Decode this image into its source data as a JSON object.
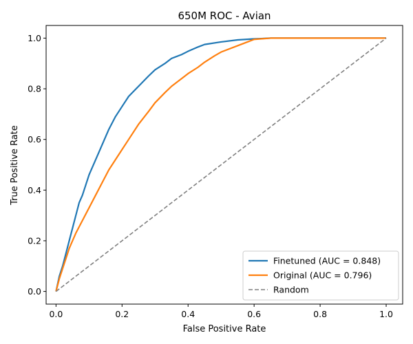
{
  "chart_data": {
    "type": "line",
    "title": "650M ROC - Avian",
    "xlabel": "False Positive Rate",
    "ylabel": "True Positive Rate",
    "xlim": [
      -0.03,
      1.05
    ],
    "ylim": [
      -0.05,
      1.05
    ],
    "xticks": [
      0.0,
      0.2,
      0.4,
      0.6,
      0.8,
      1.0
    ],
    "yticks": [
      0.0,
      0.2,
      0.4,
      0.6,
      0.8,
      1.0
    ],
    "xtick_labels": [
      "0.0",
      "0.2",
      "0.4",
      "0.6",
      "0.8",
      "1.0"
    ],
    "ytick_labels": [
      "0.0",
      "0.2",
      "0.4",
      "0.6",
      "0.8",
      "1.0"
    ],
    "grid": false,
    "legend_position": "lower-right",
    "series": [
      {
        "name": "Finetuned (AUC = 0.848)",
        "color": "#1f77b4",
        "style": "solid",
        "x": [
          0.0,
          0.01,
          0.02,
          0.03,
          0.04,
          0.05,
          0.06,
          0.07,
          0.08,
          0.09,
          0.1,
          0.12,
          0.14,
          0.16,
          0.18,
          0.2,
          0.22,
          0.25,
          0.28,
          0.3,
          0.33,
          0.35,
          0.38,
          0.4,
          0.43,
          0.45,
          0.5,
          0.55,
          0.6,
          0.65,
          0.7,
          0.8,
          0.9,
          1.0
        ],
        "y": [
          0.0,
          0.06,
          0.1,
          0.15,
          0.2,
          0.25,
          0.3,
          0.35,
          0.38,
          0.42,
          0.46,
          0.52,
          0.58,
          0.64,
          0.69,
          0.73,
          0.77,
          0.81,
          0.85,
          0.875,
          0.9,
          0.92,
          0.935,
          0.948,
          0.965,
          0.975,
          0.985,
          0.993,
          0.997,
          1.0,
          1.0,
          1.0,
          1.0,
          1.0
        ]
      },
      {
        "name": "Original (AUC = 0.796)",
        "color": "#ff7f0e",
        "style": "solid",
        "x": [
          0.0,
          0.01,
          0.02,
          0.03,
          0.04,
          0.05,
          0.06,
          0.08,
          0.1,
          0.12,
          0.14,
          0.16,
          0.18,
          0.2,
          0.22,
          0.25,
          0.28,
          0.3,
          0.33,
          0.35,
          0.38,
          0.4,
          0.43,
          0.45,
          0.48,
          0.5,
          0.55,
          0.58,
          0.6,
          0.65,
          0.7,
          0.8,
          0.9,
          1.0
        ],
        "y": [
          0.0,
          0.05,
          0.09,
          0.13,
          0.17,
          0.2,
          0.23,
          0.28,
          0.33,
          0.38,
          0.43,
          0.48,
          0.52,
          0.56,
          0.6,
          0.66,
          0.71,
          0.745,
          0.785,
          0.81,
          0.84,
          0.86,
          0.885,
          0.905,
          0.93,
          0.945,
          0.97,
          0.985,
          0.995,
          1.0,
          1.0,
          1.0,
          1.0,
          1.0
        ]
      },
      {
        "name": "Random",
        "color": "#7f7f7f",
        "style": "dashed",
        "x": [
          0.0,
          1.0
        ],
        "y": [
          0.0,
          1.0
        ]
      }
    ]
  }
}
